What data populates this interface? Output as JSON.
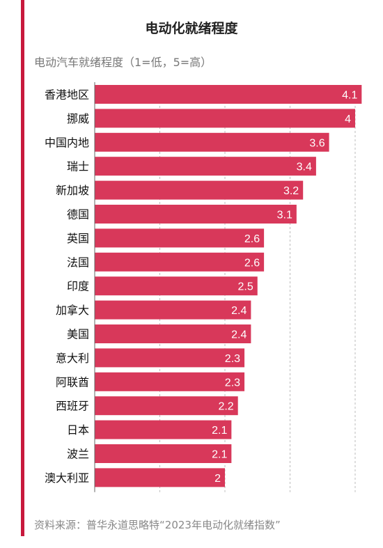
{
  "page": {
    "title": "电动化就绪程度",
    "source": "资料来源：普华永道思略特“2023年电动化就绪指数”"
  },
  "colors": {
    "bar": "#d8385a",
    "accent": "#c8193d",
    "grid": "#bbbbbb",
    "axis": "#666666",
    "label_text": "#111111",
    "value_text": "#ffffff"
  },
  "chart_data": {
    "type": "bar",
    "orientation": "horizontal",
    "title": "电动化就绪程度",
    "subtitle": "电动汽车就绪程度（1=低，5=高）",
    "categories": [
      "香港地区",
      "挪威",
      "中国内地",
      "瑞士",
      "新加坡",
      "德国",
      "英国",
      "法国",
      "印度",
      "加拿大",
      "美国",
      "意大利",
      "阿联酋",
      "西班牙",
      "日本",
      "波兰",
      "澳大利亚"
    ],
    "values": [
      4.1,
      4,
      3.6,
      3.4,
      3.2,
      3.1,
      2.6,
      2.6,
      2.5,
      2.4,
      2.4,
      2.3,
      2.3,
      2.2,
      2.1,
      2.1,
      2
    ],
    "data_labels": [
      "4.1",
      "4",
      "3.6",
      "3.4",
      "3.2",
      "3.1",
      "2.6",
      "2.6",
      "2.5",
      "2.4",
      "2.4",
      "2.3",
      "2.3",
      "2.2",
      "2.1",
      "2.1",
      "2"
    ],
    "xlim": [
      0,
      4
    ],
    "grid": true,
    "legend": "none"
  }
}
